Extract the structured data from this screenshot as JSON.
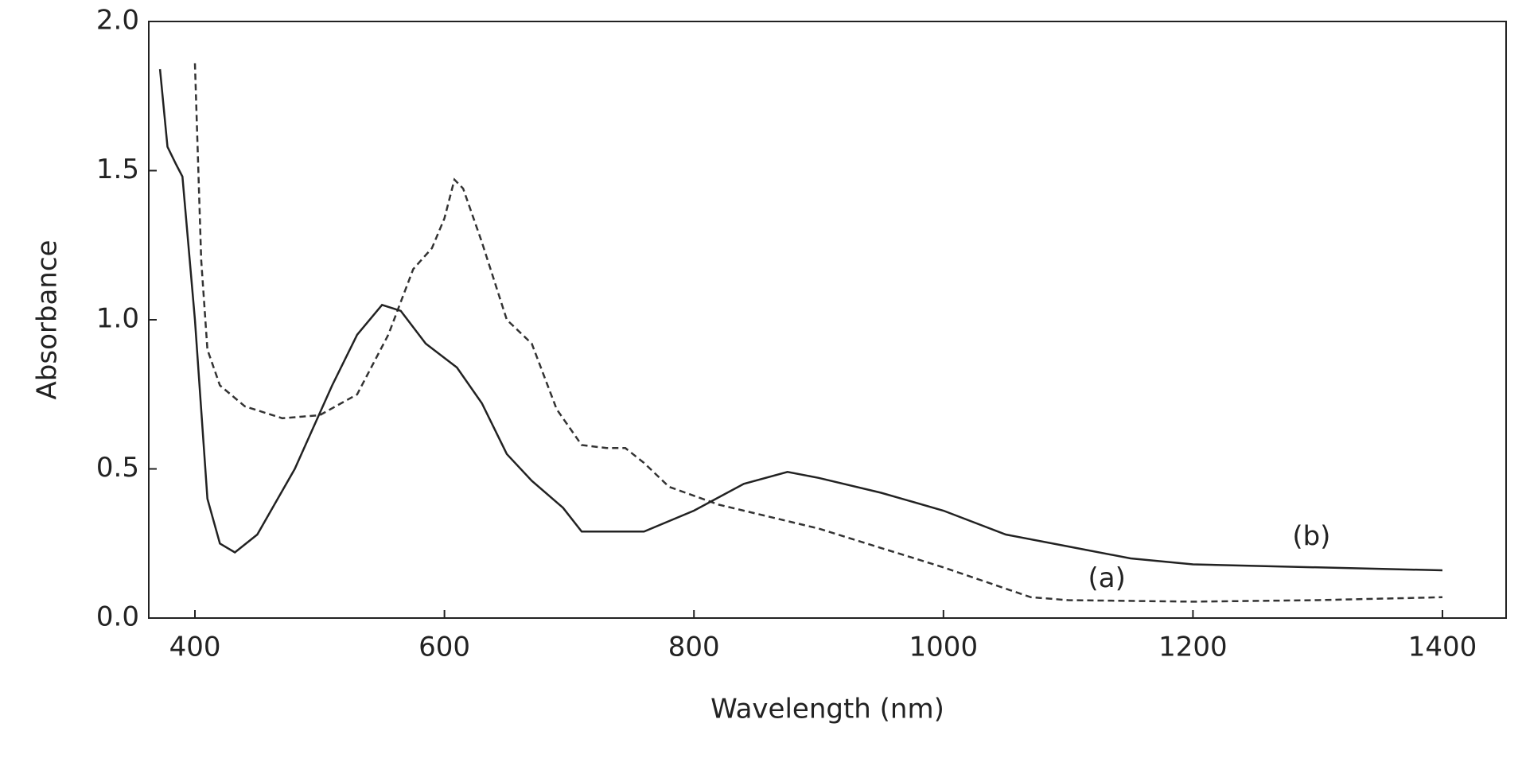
{
  "chart_data": {
    "type": "line",
    "xlabel": "Wavelength (nm)",
    "ylabel": "Absorbance",
    "xlim": [
      363,
      1451
    ],
    "ylim": [
      0,
      2
    ],
    "xticks": [
      400,
      600,
      800,
      1000,
      1200,
      1400
    ],
    "yticks": [
      {
        "value": 0,
        "label": "0.0"
      },
      0.5,
      {
        "value": 1,
        "label": "1.0"
      },
      1.5,
      {
        "value": 2,
        "label": "2.0"
      }
    ],
    "grid": false,
    "series": [
      {
        "name": "(a)",
        "color": "#333333",
        "dash": true,
        "x": [
          400,
          405,
          410,
          420,
          440,
          470,
          500,
          530,
          555,
          575,
          590,
          600,
          608,
          615,
          630,
          650,
          670,
          690,
          710,
          730,
          745,
          760,
          780,
          820,
          900,
          1000,
          1070,
          1100,
          1200,
          1300,
          1400
        ],
        "values": [
          1.86,
          1.2,
          0.9,
          0.78,
          0.71,
          0.67,
          0.68,
          0.75,
          0.95,
          1.17,
          1.24,
          1.34,
          1.47,
          1.44,
          1.26,
          1.0,
          0.92,
          0.7,
          0.58,
          0.57,
          0.57,
          0.52,
          0.44,
          0.38,
          0.3,
          0.17,
          0.07,
          0.06,
          0.055,
          0.06,
          0.07
        ]
      },
      {
        "name": "(b)",
        "color": "#222222",
        "dash": false,
        "x": [
          372,
          378,
          385,
          390,
          400,
          410,
          420,
          432,
          450,
          480,
          510,
          530,
          550,
          565,
          585,
          610,
          630,
          650,
          670,
          695,
          710,
          730,
          760,
          800,
          840,
          875,
          900,
          950,
          1000,
          1050,
          1100,
          1150,
          1200,
          1300,
          1400
        ],
        "values": [
          1.84,
          1.58,
          1.52,
          1.48,
          1.0,
          0.4,
          0.25,
          0.22,
          0.28,
          0.5,
          0.78,
          0.95,
          1.05,
          1.03,
          0.92,
          0.84,
          0.72,
          0.55,
          0.46,
          0.37,
          0.29,
          0.29,
          0.29,
          0.36,
          0.45,
          0.49,
          0.47,
          0.42,
          0.36,
          0.28,
          0.24,
          0.2,
          0.18,
          0.17,
          0.16
        ]
      }
    ]
  }
}
